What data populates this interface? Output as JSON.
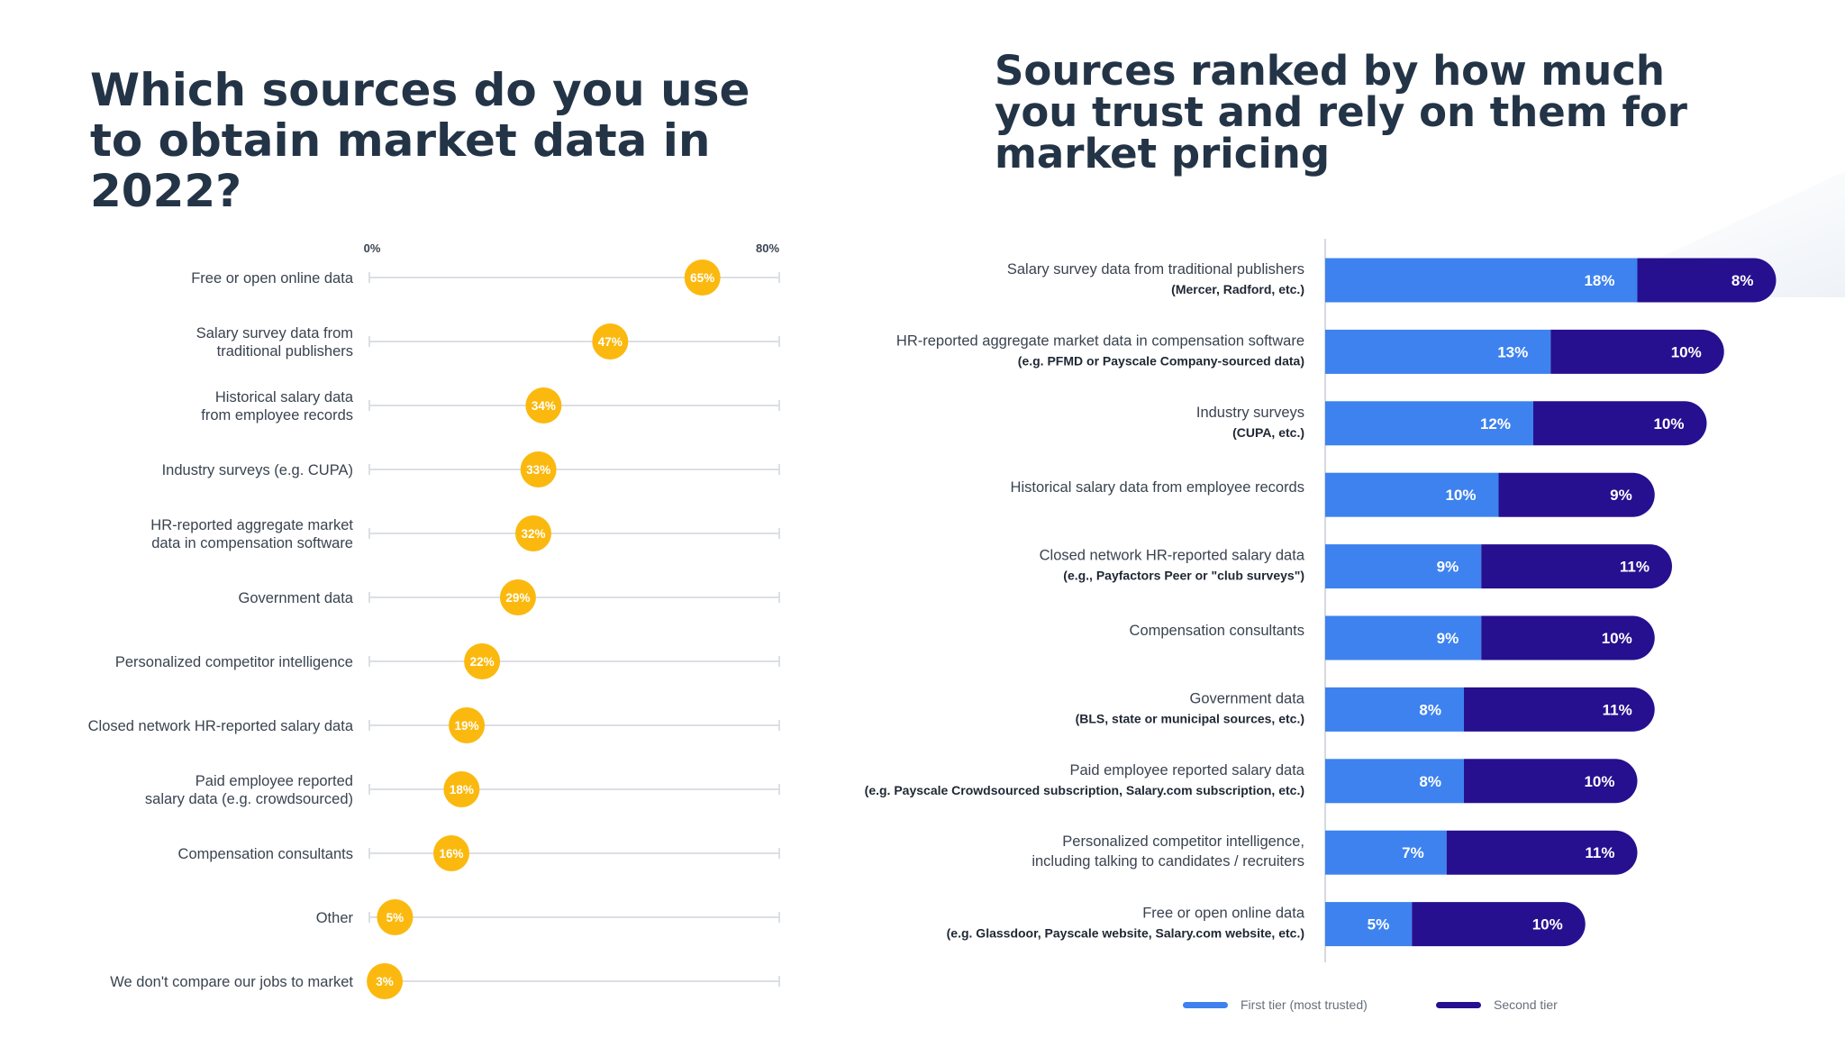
{
  "left_title": "Which sources do you use to obtain market data in 2022?",
  "right_title": "Sources ranked by how much you trust and rely on them for market pricing",
  "colors": {
    "dot": "#fbb90f",
    "first_tier": "#3d82ef",
    "second_tier": "#26108f",
    "track": "#dcdfe4",
    "title": "#243447"
  },
  "chart_data": [
    {
      "type": "scatter",
      "title": "Which sources do you use to obtain market data in 2022?",
      "xlim": [
        0,
        80
      ],
      "axis_min_label": "0%",
      "axis_max_label": "80%",
      "grid": false,
      "categories": [
        [
          "Free or open online data"
        ],
        [
          "Salary survey data from",
          "traditional publishers"
        ],
        [
          "Historical salary data",
          "from employee records"
        ],
        [
          "Industry surveys (e.g. CUPA)"
        ],
        [
          "HR-reported aggregate market",
          "data in compensation software"
        ],
        [
          "Government data"
        ],
        [
          "Personalized competitor intelligence"
        ],
        [
          "Closed network HR-reported salary data"
        ],
        [
          "Paid employee reported",
          "salary data (e.g. crowdsourced)"
        ],
        [
          "Compensation consultants"
        ],
        [
          "Other"
        ],
        [
          "We don't compare our jobs to market"
        ]
      ],
      "values": [
        65,
        47,
        34,
        33,
        32,
        29,
        22,
        19,
        18,
        16,
        5,
        3
      ],
      "value_labels": [
        "65%",
        "47%",
        "34%",
        "33%",
        "32%",
        "29%",
        "22%",
        "19%",
        "18%",
        "16%",
        "5%",
        "3%"
      ]
    },
    {
      "type": "bar",
      "orientation": "horizontal",
      "stacked": true,
      "title": "Sources ranked by how much you trust and rely on them for market pricing",
      "categories": [
        {
          "main": "Salary survey data from traditional publishers",
          "sub": "(Mercer, Radford, etc.)"
        },
        {
          "main": "HR-reported aggregate market data in compensation software",
          "sub": "(e.g. PFMD or Payscale Company-sourced data)"
        },
        {
          "main": "Industry surveys",
          "sub": "(CUPA, etc.)"
        },
        {
          "main": "Historical salary data from employee records",
          "sub": ""
        },
        {
          "main": "Closed network HR-reported salary data",
          "sub": "(e.g., Payfactors Peer or \"club surveys\")"
        },
        {
          "main": "Compensation consultants",
          "sub": ""
        },
        {
          "main": "Government data",
          "sub": "(BLS, state or municipal sources, etc.)"
        },
        {
          "main": "Paid employee reported salary data",
          "sub": "(e.g. Payscale Crowdsourced subscription, Salary.com subscription, etc.)"
        },
        {
          "main": "Personalized competitor intelligence,",
          "sub": "including talking to candidates / recruiters",
          "sub_regular": true
        },
        {
          "main": "Free or open online data",
          "sub": "(e.g. Glassdoor, Payscale website, Salary.com website, etc.)"
        }
      ],
      "series": [
        {
          "name": "First tier (most trusted)",
          "values": [
            18,
            13,
            12,
            10,
            9,
            9,
            8,
            8,
            7,
            5
          ],
          "labels": [
            "18%",
            "13%",
            "12%",
            "10%",
            "9%",
            "9%",
            "8%",
            "8%",
            "7%",
            "5%"
          ]
        },
        {
          "name": "Second tier",
          "values": [
            8,
            10,
            10,
            9,
            11,
            10,
            11,
            10,
            11,
            10
          ],
          "labels": [
            "8%",
            "10%",
            "10%",
            "9%",
            "11%",
            "10%",
            "11%",
            "10%",
            "11%",
            "10%"
          ]
        }
      ],
      "legend_position": "bottom"
    }
  ]
}
